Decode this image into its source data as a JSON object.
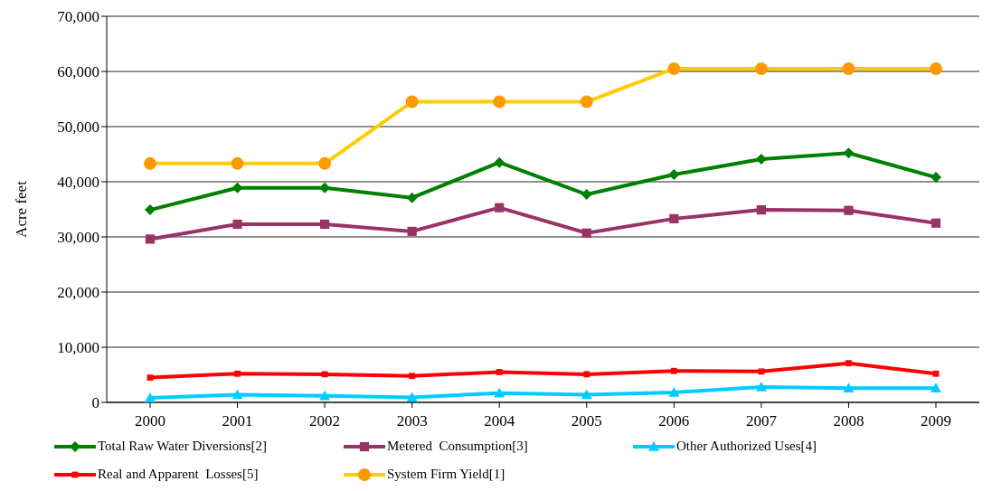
{
  "chart_data": {
    "type": "line",
    "ylabel": "Acre feet",
    "categories": [
      "2000",
      "2001",
      "2002",
      "2003",
      "2004",
      "2005",
      "2006",
      "2007",
      "2008",
      "2009"
    ],
    "series": [
      {
        "name": "Total Raw Water Diversions[2]",
        "color": "#008000",
        "marker": "diamond",
        "values": [
          34900,
          38900,
          38900,
          37100,
          43500,
          37700,
          41300,
          44100,
          45200,
          40800
        ]
      },
      {
        "name": "Metered  Consumption[3]",
        "color": "#993366",
        "marker": "square",
        "values": [
          29600,
          32300,
          32300,
          31000,
          35300,
          30700,
          33300,
          34900,
          34800,
          32500
        ]
      },
      {
        "name": "Other Authorized Uses[4]",
        "color": "#00ccff",
        "marker": "triangle",
        "values": [
          800,
          1400,
          1200,
          900,
          1700,
          1400,
          1800,
          2800,
          2600,
          2600
        ]
      },
      {
        "name": "Real and Apparent  Losses[5]",
        "color": "#ff0000",
        "marker": "square",
        "values": [
          4500,
          5200,
          5100,
          4800,
          5500,
          5100,
          5700,
          5600,
          7100,
          5200
        ]
      },
      {
        "name": "System Firm Yield[1]",
        "color": "#ffcc00",
        "marker": "circle",
        "values": [
          43300,
          43300,
          43300,
          54500,
          54500,
          54500,
          60500,
          60500,
          60500,
          60500
        ]
      }
    ],
    "ylim": [
      0,
      70000
    ],
    "yticks": [
      0,
      {
        "value": 10000,
        "label": "10,000"
      },
      {
        "value": 20000,
        "label": "20,000"
      },
      {
        "value": 30000,
        "label": "30,000"
      },
      {
        "value": 40000,
        "label": "40,000"
      },
      {
        "value": 50000,
        "label": "50,000"
      },
      {
        "value": 60000,
        "label": "60,000"
      },
      {
        "value": 70000,
        "label": "70,000"
      }
    ],
    "grid": "y",
    "legend": "bottom",
    "line_style": "solid"
  }
}
